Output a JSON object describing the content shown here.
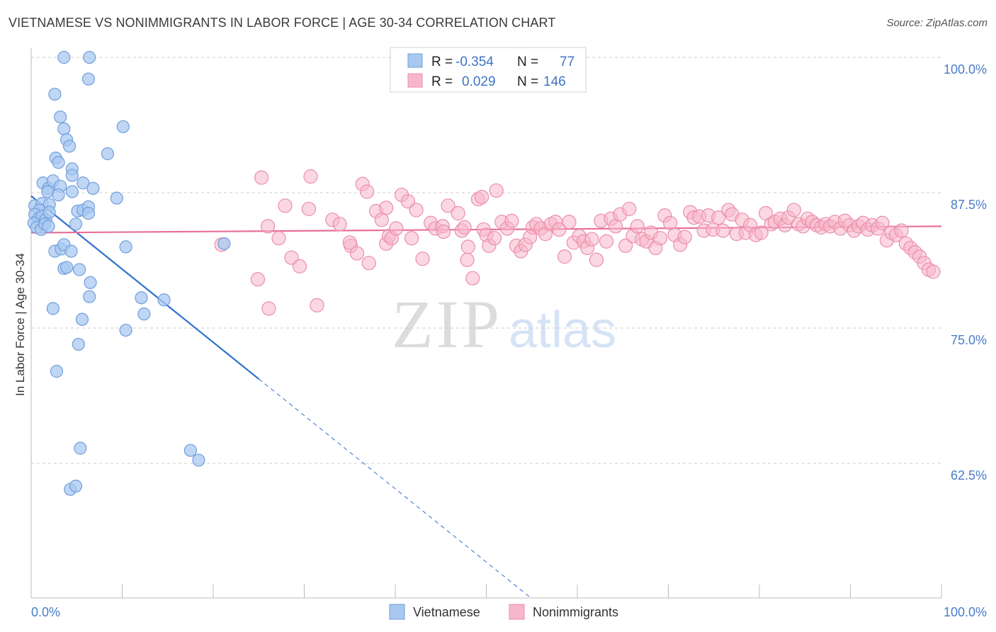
{
  "title": "VIETNAMESE VS NONIMMIGRANTS IN LABOR FORCE | AGE 30-34 CORRELATION CHART",
  "source": "Source: ZipAtlas.com",
  "watermark": {
    "zip": "ZIP",
    "atlas": "atlas"
  },
  "colors": {
    "blue_fill": "#a9c8f0",
    "blue_stroke": "#6f9fdc",
    "blue_line": "#2f6fd0",
    "pink_fill": "#f7b7cb",
    "pink_stroke": "#eb8eab",
    "pink_line": "#e8709a",
    "grid": "#cccccc",
    "tick_text": "#4a7cc9"
  },
  "legend": {
    "rows": [
      {
        "r_label": "R =",
        "r_value": "-0.354",
        "n_label": "N =",
        "n_value": "77"
      },
      {
        "r_label": "R =",
        "r_value": "0.029",
        "n_label": "N =",
        "n_value": "146"
      }
    ]
  },
  "chart_data": {
    "type": "scatter",
    "title": "VIETNAMESE VS NONIMMIGRANTS IN LABOR FORCE | AGE 30-34 CORRELATION CHART",
    "xlabel": "",
    "ylabel": "In Labor Force | Age 30-34",
    "xlim": [
      0,
      100
    ],
    "ylim": [
      50,
      102
    ],
    "x_tick_labels": [
      "0.0%",
      "100.0%"
    ],
    "y_ticks": [
      62.5,
      75.0,
      87.5,
      100.0
    ],
    "y_tick_labels": [
      "62.5%",
      "75.0%",
      "87.5%",
      "100.0%"
    ],
    "series": [
      {
        "name": "Vietnamese",
        "r": -0.354,
        "n": 77,
        "trend": {
          "x0": 0,
          "y0": 87.2,
          "x1": 25,
          "y1": 70.3,
          "dash_to_x": 55,
          "dash_to_y": 50
        },
        "points": [
          [
            3.6,
            100
          ],
          [
            6.4,
            100
          ],
          [
            6.3,
            98
          ],
          [
            2.6,
            96.6
          ],
          [
            3.2,
            94.5
          ],
          [
            3.6,
            93.4
          ],
          [
            3.9,
            92.4
          ],
          [
            4.2,
            91.8
          ],
          [
            8.4,
            91.1
          ],
          [
            10.1,
            93.6
          ],
          [
            2.7,
            90.7
          ],
          [
            3.0,
            90.3
          ],
          [
            4.5,
            89.7
          ],
          [
            4.5,
            89.1
          ],
          [
            1.3,
            88.4
          ],
          [
            1.9,
            87.9
          ],
          [
            2.4,
            88.6
          ],
          [
            3.2,
            88.1
          ],
          [
            5.7,
            88.4
          ],
          [
            6.8,
            87.9
          ],
          [
            1.8,
            87.6
          ],
          [
            3.0,
            87.3
          ],
          [
            4.5,
            87.6
          ],
          [
            9.4,
            87.0
          ],
          [
            0.4,
            86.3
          ],
          [
            1.2,
            86.5
          ],
          [
            2.0,
            86.4
          ],
          [
            0.9,
            85.9
          ],
          [
            5.1,
            85.8
          ],
          [
            5.7,
            85.9
          ],
          [
            6.3,
            86.2
          ],
          [
            6.3,
            85.6
          ],
          [
            0.4,
            85.5
          ],
          [
            0.8,
            85.1
          ],
          [
            1.2,
            85.3
          ],
          [
            1.6,
            85.0
          ],
          [
            2.0,
            85.7
          ],
          [
            0.3,
            84.7
          ],
          [
            0.6,
            84.3
          ],
          [
            1.1,
            84.1
          ],
          [
            1.5,
            84.6
          ],
          [
            1.9,
            84.4
          ],
          [
            4.9,
            84.6
          ],
          [
            2.6,
            82.1
          ],
          [
            3.3,
            82.3
          ],
          [
            3.6,
            82.7
          ],
          [
            4.4,
            82.1
          ],
          [
            10.4,
            82.5
          ],
          [
            21.2,
            82.8
          ],
          [
            3.6,
            80.5
          ],
          [
            3.9,
            80.6
          ],
          [
            5.3,
            80.4
          ],
          [
            6.5,
            79.2
          ],
          [
            6.4,
            77.9
          ],
          [
            12.1,
            77.8
          ],
          [
            14.6,
            77.6
          ],
          [
            2.4,
            76.8
          ],
          [
            5.6,
            75.8
          ],
          [
            12.4,
            76.3
          ],
          [
            10.4,
            74.8
          ],
          [
            5.2,
            73.5
          ],
          [
            2.8,
            71.0
          ],
          [
            5.4,
            63.9
          ],
          [
            17.5,
            63.7
          ],
          [
            18.4,
            62.8
          ],
          [
            4.3,
            60.1
          ],
          [
            4.9,
            60.4
          ]
        ]
      },
      {
        "name": "Nonimmigrants",
        "r": 0.029,
        "n": 146,
        "trend": {
          "x0": 0,
          "y0": 83.8,
          "x1": 100,
          "y1": 84.4
        },
        "points": [
          [
            25.3,
            88.9
          ],
          [
            30.7,
            89.0
          ],
          [
            36.4,
            88.3
          ],
          [
            36.9,
            87.6
          ],
          [
            51.1,
            87.7
          ],
          [
            20.9,
            82.7
          ],
          [
            24.9,
            79.5
          ],
          [
            26.0,
            84.4
          ],
          [
            27.2,
            83.3
          ],
          [
            27.9,
            86.3
          ],
          [
            26.1,
            76.8
          ],
          [
            28.6,
            81.5
          ],
          [
            29.5,
            80.7
          ],
          [
            30.5,
            86.0
          ],
          [
            31.4,
            77.1
          ],
          [
            33.1,
            85.0
          ],
          [
            33.9,
            84.6
          ],
          [
            35.1,
            82.6
          ],
          [
            35.0,
            82.9
          ],
          [
            35.8,
            81.9
          ],
          [
            37.1,
            81.0
          ],
          [
            37.9,
            85.8
          ],
          [
            38.5,
            85.0
          ],
          [
            39.0,
            86.1
          ],
          [
            39.0,
            82.8
          ],
          [
            39.3,
            83.5
          ],
          [
            39.6,
            83.3
          ],
          [
            40.1,
            84.2
          ],
          [
            40.7,
            87.3
          ],
          [
            41.4,
            86.7
          ],
          [
            41.8,
            83.3
          ],
          [
            42.3,
            85.9
          ],
          [
            43.0,
            81.4
          ],
          [
            43.9,
            84.7
          ],
          [
            44.4,
            84.2
          ],
          [
            45.2,
            84.4
          ],
          [
            45.3,
            83.9
          ],
          [
            45.8,
            86.3
          ],
          [
            46.9,
            85.6
          ],
          [
            47.3,
            84.0
          ],
          [
            47.6,
            84.3
          ],
          [
            47.9,
            81.3
          ],
          [
            48.0,
            82.5
          ],
          [
            48.5,
            79.6
          ],
          [
            49.1,
            86.9
          ],
          [
            49.5,
            87.1
          ],
          [
            49.7,
            84.1
          ],
          [
            50.0,
            83.6
          ],
          [
            50.3,
            82.6
          ],
          [
            50.9,
            83.3
          ],
          [
            51.7,
            84.8
          ],
          [
            52.3,
            84.2
          ],
          [
            52.8,
            84.9
          ],
          [
            53.3,
            82.6
          ],
          [
            53.8,
            82.1
          ],
          [
            54.3,
            82.7
          ],
          [
            54.8,
            83.4
          ],
          [
            55.1,
            84.3
          ],
          [
            55.5,
            84.6
          ],
          [
            56.0,
            84.2
          ],
          [
            56.5,
            83.7
          ],
          [
            57.1,
            84.6
          ],
          [
            57.6,
            84.8
          ],
          [
            58.0,
            84.1
          ],
          [
            58.6,
            81.6
          ],
          [
            59.1,
            84.8
          ],
          [
            59.6,
            82.9
          ],
          [
            60.2,
            83.5
          ],
          [
            60.7,
            83.0
          ],
          [
            61.1,
            82.4
          ],
          [
            61.6,
            83.2
          ],
          [
            62.1,
            81.3
          ],
          [
            62.6,
            84.9
          ],
          [
            63.2,
            83.0
          ],
          [
            63.7,
            85.1
          ],
          [
            64.2,
            84.4
          ],
          [
            64.7,
            85.5
          ],
          [
            65.3,
            82.6
          ],
          [
            65.7,
            86.0
          ],
          [
            66.1,
            83.5
          ],
          [
            66.6,
            84.4
          ],
          [
            67.1,
            83.2
          ],
          [
            67.6,
            83.0
          ],
          [
            68.1,
            83.8
          ],
          [
            68.6,
            82.4
          ],
          [
            69.1,
            83.3
          ],
          [
            69.6,
            85.4
          ],
          [
            70.2,
            84.7
          ],
          [
            70.7,
            83.6
          ],
          [
            71.3,
            82.7
          ],
          [
            71.8,
            83.4
          ],
          [
            72.4,
            85.7
          ],
          [
            72.8,
            85.2
          ],
          [
            73.4,
            85.3
          ],
          [
            73.9,
            84.0
          ],
          [
            74.4,
            85.4
          ],
          [
            74.9,
            84.1
          ],
          [
            75.5,
            85.2
          ],
          [
            76.0,
            84.0
          ],
          [
            76.6,
            85.9
          ],
          [
            77.0,
            85.5
          ],
          [
            77.5,
            83.7
          ],
          [
            78.1,
            85.0
          ],
          [
            78.5,
            83.8
          ],
          [
            79.0,
            84.5
          ],
          [
            79.6,
            83.6
          ],
          [
            80.2,
            83.8
          ],
          [
            80.7,
            85.6
          ],
          [
            81.3,
            84.6
          ],
          [
            81.7,
            84.8
          ],
          [
            82.3,
            85.1
          ],
          [
            82.8,
            84.5
          ],
          [
            83.2,
            85.2
          ],
          [
            83.8,
            85.9
          ],
          [
            84.3,
            84.6
          ],
          [
            84.8,
            84.4
          ],
          [
            85.3,
            85.1
          ],
          [
            85.8,
            84.8
          ],
          [
            86.3,
            84.5
          ],
          [
            86.8,
            84.3
          ],
          [
            87.3,
            84.6
          ],
          [
            87.8,
            84.4
          ],
          [
            88.3,
            84.8
          ],
          [
            88.9,
            84.2
          ],
          [
            89.4,
            84.9
          ],
          [
            89.9,
            84.5
          ],
          [
            90.4,
            84.0
          ],
          [
            90.9,
            84.4
          ],
          [
            91.4,
            84.7
          ],
          [
            91.9,
            84.1
          ],
          [
            92.4,
            84.5
          ],
          [
            93.0,
            84.2
          ],
          [
            93.5,
            84.7
          ],
          [
            94.0,
            83.1
          ],
          [
            94.5,
            83.8
          ],
          [
            95.0,
            83.6
          ],
          [
            95.6,
            84.0
          ],
          [
            96.1,
            82.8
          ],
          [
            96.6,
            82.4
          ],
          [
            97.1,
            82.0
          ],
          [
            97.6,
            81.6
          ],
          [
            98.1,
            81.0
          ],
          [
            98.6,
            80.4
          ],
          [
            99.1,
            80.2
          ]
        ]
      }
    ],
    "legend_position": "top-center",
    "bottom_legend": [
      "Vietnamese",
      "Nonimmigrants"
    ],
    "grid": true
  }
}
